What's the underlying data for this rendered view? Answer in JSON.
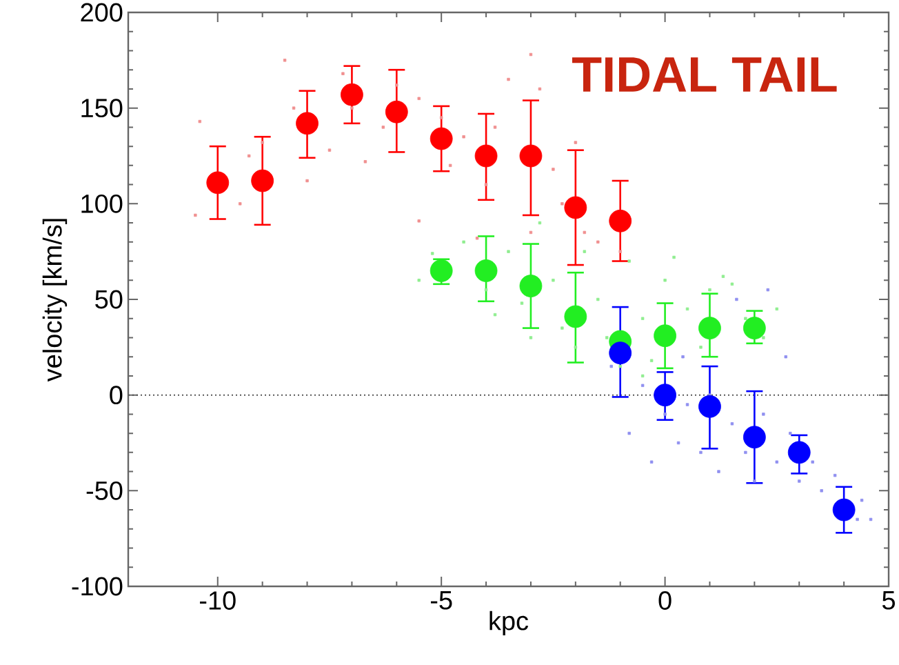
{
  "chart_data": {
    "type": "scatter",
    "xlabel": "kpc",
    "ylabel": "velocity [km/s]",
    "xlim": [
      -12,
      5
    ],
    "ylim": [
      -100,
      200
    ],
    "xticks": [
      -10,
      -5,
      0,
      5
    ],
    "yticks": [
      -100,
      -50,
      0,
      50,
      100,
      150,
      200
    ],
    "grid": false,
    "ref_lines": [
      {
        "axis": "y",
        "value": 0,
        "color": "#555555",
        "line_style": "dotted"
      }
    ],
    "annotations": [
      "TIDAL TAIL"
    ],
    "series": [
      {
        "type": "scatter",
        "marker": "square",
        "color": "#f09090",
        "x": [
          -10.5,
          -10.4,
          -9.5,
          -9.3,
          -9.0,
          -8.5,
          -8.3,
          -8,
          -7.5,
          -7.2,
          -7,
          -6.7,
          -6.3,
          -6,
          -5.5,
          -5.5,
          -5,
          -4.8,
          -4.5,
          -4,
          -3.8,
          -3.5,
          -3,
          -2.8,
          -2.5,
          -2.3,
          -2,
          -1.8,
          -1.5,
          -1,
          -3,
          -4.2
        ],
        "values": [
          94,
          143,
          100,
          125,
          132,
          175,
          150,
          112,
          128,
          168,
          150,
          122,
          140,
          162,
          155,
          91,
          145,
          120,
          135,
          110,
          140,
          165,
          178,
          160,
          118,
          100,
          132,
          85,
          80,
          75,
          85,
          82
        ]
      },
      {
        "type": "scatter",
        "marker": "square",
        "color": "#90ee90",
        "x": [
          -5.2,
          -5.5,
          -4.5,
          -4,
          -3.8,
          -3.5,
          -3.2,
          -3,
          -2.8,
          -2.5,
          -2.3,
          -2,
          -1.8,
          -1.5,
          -1.3,
          -1,
          -0.8,
          -0.5,
          -0.3,
          0,
          0.2,
          0.5,
          0.8,
          1,
          1.5,
          1.8,
          2.2,
          2.5,
          1.3,
          -0.5
        ],
        "values": [
          74,
          60,
          80,
          55,
          42,
          75,
          48,
          30,
          90,
          60,
          35,
          25,
          75,
          50,
          30,
          15,
          70,
          40,
          18,
          60,
          72,
          45,
          25,
          55,
          58,
          40,
          30,
          45,
          62,
          10
        ]
      },
      {
        "type": "scatter",
        "marker": "square",
        "color": "#9090f0",
        "x": [
          -1.2,
          -0.8,
          -0.5,
          -0.3,
          0,
          0.3,
          0.5,
          0.8,
          1,
          1.2,
          1.5,
          1.8,
          2,
          2.2,
          2.5,
          2.7,
          2.8,
          3,
          3.3,
          3.5,
          3.8,
          4.4,
          4.3,
          4.6,
          2.3,
          1.6,
          0.4
        ],
        "values": [
          15,
          -20,
          5,
          -35,
          -10,
          -25,
          -5,
          -30,
          0,
          -40,
          -15,
          -30,
          -45,
          -10,
          -35,
          20,
          -20,
          -45,
          -35,
          -50,
          -42,
          -55,
          -65,
          -65,
          55,
          50,
          20
        ]
      },
      {
        "type": "scatter",
        "marker": "circle",
        "color": "#ff0000",
        "x": [
          -10,
          -9,
          -8,
          -7,
          -6,
          -5,
          -4,
          -3,
          -2,
          -1
        ],
        "values": [
          111,
          112,
          142,
          157,
          148,
          134,
          125,
          125,
          98,
          91
        ],
        "errors": [
          [
            92,
            130
          ],
          [
            89,
            135
          ],
          [
            124,
            159
          ],
          [
            142,
            172
          ],
          [
            127,
            170
          ],
          [
            117,
            151
          ],
          [
            102,
            147
          ],
          [
            94,
            154
          ],
          [
            68,
            128
          ],
          [
            70,
            112
          ]
        ]
      },
      {
        "type": "scatter",
        "marker": "circle",
        "color": "#22ee22",
        "x": [
          -5,
          -4,
          -3,
          -2,
          -1,
          0,
          1,
          2
        ],
        "values": [
          65,
          65,
          57,
          41,
          28,
          31,
          35,
          35
        ],
        "errors": [
          [
            58,
            71
          ],
          [
            49,
            83
          ],
          [
            35,
            79
          ],
          [
            17,
            64
          ],
          null,
          [
            14,
            48
          ],
          [
            20,
            53
          ],
          [
            27,
            44
          ]
        ]
      },
      {
        "type": "scatter",
        "marker": "circle",
        "color": "#0000ff",
        "x": [
          -1,
          0,
          1,
          2,
          3,
          4
        ],
        "values": [
          22,
          0,
          -6,
          -22,
          -30,
          -60
        ],
        "errors": [
          [
            -1,
            46
          ],
          [
            -13,
            12
          ],
          [
            -28,
            15
          ],
          [
            -46,
            2
          ],
          [
            -41,
            -21
          ],
          [
            -72,
            -48
          ]
        ]
      }
    ]
  }
}
